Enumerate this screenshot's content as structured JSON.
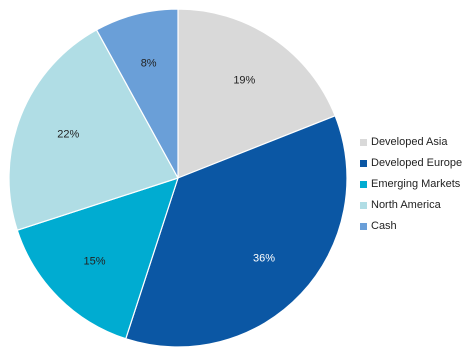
{
  "chart_data": {
    "type": "pie",
    "categories": [
      "Developed Asia",
      "Developed Europe",
      "Emerging Markets",
      "North America",
      "Cash"
    ],
    "values": [
      19,
      36,
      15,
      22,
      8
    ],
    "data_labels": [
      "19%",
      "36%",
      "15%",
      "22%",
      "8%"
    ],
    "colors": [
      "#d9d9d9",
      "#0b57a4",
      "#00acd1",
      "#b0dde5",
      "#6a9fd8"
    ],
    "label_colors": [
      "#222222",
      "#ffffff",
      "#222222",
      "#222222",
      "#222222"
    ],
    "start": "12 o'clock",
    "direction": "clockwise",
    "legend_position": "right"
  }
}
